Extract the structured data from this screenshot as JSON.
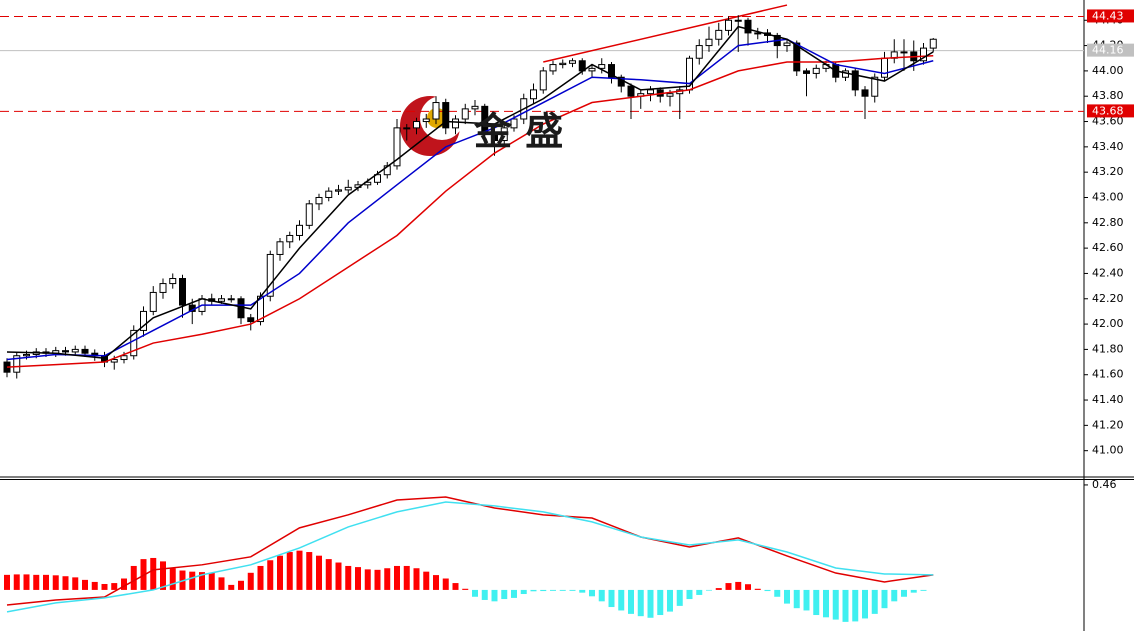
{
  "chart_data": [
    {
      "type": "candlestick",
      "watermark": "金 盛",
      "up_color": "#ffffff",
      "down_color": "#000000",
      "outline_color": "#000000",
      "open": [
        41.7,
        41.62,
        41.75,
        41.76,
        41.78,
        41.77,
        41.79,
        41.78,
        41.8,
        41.77,
        41.75,
        41.7,
        41.72,
        41.75,
        41.95,
        42.1,
        42.25,
        42.32,
        42.36,
        42.15,
        42.1,
        42.2,
        42.18,
        42.2,
        42.2,
        42.05,
        42.02,
        42.22,
        42.55,
        42.65,
        42.7,
        42.78,
        42.95,
        43.0,
        43.05,
        43.06,
        43.08,
        43.1,
        43.12,
        43.18,
        43.25,
        43.55,
        43.55,
        43.6,
        43.62,
        43.75,
        43.55,
        43.62,
        43.7,
        43.72,
        43.5,
        43.45,
        43.55,
        43.62,
        43.78,
        43.85,
        44.0,
        44.05,
        44.06,
        44.08,
        44.0,
        44.02,
        44.05,
        43.95,
        43.88,
        43.8,
        43.82,
        43.85,
        43.8,
        43.82,
        43.85,
        44.1,
        44.2,
        44.25,
        44.32,
        44.4,
        44.4,
        44.3,
        44.3,
        44.28,
        44.2,
        44.22,
        44.0,
        43.98,
        44.02,
        44.05,
        43.95,
        44.0,
        43.85,
        43.8,
        43.95,
        44.1,
        44.15,
        44.15,
        44.08,
        44.18
      ],
      "high": [
        41.73,
        41.78,
        41.79,
        41.81,
        41.81,
        41.82,
        41.82,
        41.83,
        41.83,
        41.8,
        41.78,
        41.75,
        41.78,
        41.99,
        42.14,
        42.3,
        42.36,
        42.4,
        42.39,
        42.2,
        42.23,
        42.24,
        42.23,
        42.23,
        42.22,
        42.08,
        42.25,
        42.58,
        42.68,
        42.73,
        42.82,
        42.98,
        43.03,
        43.08,
        43.1,
        43.14,
        43.13,
        43.15,
        43.21,
        43.28,
        43.62,
        43.58,
        43.63,
        43.66,
        43.8,
        43.78,
        43.65,
        43.74,
        43.77,
        43.74,
        43.53,
        43.58,
        43.65,
        43.82,
        43.9,
        44.03,
        44.08,
        44.09,
        44.1,
        44.1,
        44.05,
        44.1,
        44.07,
        43.97,
        43.9,
        43.85,
        43.88,
        43.87,
        43.85,
        43.88,
        44.12,
        44.25,
        44.35,
        44.38,
        44.43,
        44.44,
        44.42,
        44.34,
        44.33,
        44.3,
        44.25,
        44.24,
        44.02,
        44.05,
        44.08,
        44.07,
        44.02,
        44.02,
        43.88,
        43.98,
        44.15,
        44.25,
        44.25,
        44.24,
        44.22,
        44.26
      ],
      "low": [
        41.58,
        41.57,
        41.72,
        41.73,
        41.74,
        41.74,
        41.75,
        41.75,
        41.74,
        41.71,
        41.66,
        41.64,
        41.69,
        41.72,
        41.9,
        42.07,
        42.2,
        42.28,
        42.05,
        42.0,
        42.07,
        42.15,
        42.16,
        42.17,
        42.0,
        41.95,
        41.99,
        42.18,
        42.5,
        42.6,
        42.66,
        42.75,
        42.9,
        42.97,
        43.02,
        43.03,
        43.05,
        43.07,
        43.1,
        43.15,
        43.22,
        43.45,
        43.5,
        43.55,
        43.58,
        43.5,
        43.5,
        43.58,
        43.65,
        43.45,
        43.33,
        43.4,
        43.52,
        43.58,
        43.74,
        43.82,
        43.97,
        44.02,
        44.03,
        43.97,
        43.95,
        43.98,
        43.9,
        43.83,
        43.62,
        43.7,
        43.76,
        43.75,
        43.72,
        43.62,
        43.82,
        44.05,
        44.15,
        44.2,
        44.28,
        44.15,
        44.2,
        44.25,
        44.22,
        44.1,
        44.15,
        43.96,
        43.8,
        43.94,
        43.99,
        43.91,
        43.92,
        43.8,
        43.62,
        43.75,
        43.92,
        44.06,
        44.0,
        44.0,
        44.05,
        44.15
      ],
      "close": [
        41.62,
        41.75,
        41.76,
        41.78,
        41.77,
        41.79,
        41.78,
        41.8,
        41.77,
        41.75,
        41.7,
        41.72,
        41.75,
        41.95,
        42.1,
        42.25,
        42.32,
        42.36,
        42.15,
        42.1,
        42.2,
        42.18,
        42.2,
        42.2,
        42.05,
        42.02,
        42.22,
        42.55,
        42.65,
        42.7,
        42.78,
        42.95,
        43.0,
        43.05,
        43.06,
        43.08,
        43.1,
        43.12,
        43.18,
        43.25,
        43.55,
        43.55,
        43.6,
        43.62,
        43.75,
        43.55,
        43.62,
        43.7,
        43.72,
        43.5,
        43.45,
        43.55,
        43.62,
        43.78,
        43.85,
        44.0,
        44.05,
        44.06,
        44.08,
        44.0,
        44.02,
        44.05,
        43.95,
        43.88,
        43.8,
        43.82,
        43.85,
        43.8,
        43.82,
        43.85,
        44.1,
        44.2,
        44.25,
        44.32,
        44.4,
        44.4,
        44.3,
        44.3,
        44.28,
        44.2,
        44.22,
        44.0,
        43.98,
        44.02,
        44.05,
        43.95,
        44.0,
        43.85,
        43.8,
        43.95,
        44.1,
        44.15,
        44.15,
        44.08,
        44.18,
        44.25
      ],
      "lines": [
        {
          "color": "#e00000",
          "x": [
            0,
            5,
            10,
            15,
            20,
            25,
            30,
            35,
            40,
            45,
            50,
            55,
            60,
            65,
            70,
            75,
            80,
            85,
            90,
            95
          ],
          "values": [
            41.66,
            41.68,
            41.7,
            41.85,
            41.92,
            42.0,
            42.2,
            42.45,
            42.7,
            43.05,
            43.35,
            43.58,
            43.75,
            43.8,
            43.85,
            44.0,
            44.07,
            44.07,
            44.1,
            44.12
          ]
        },
        {
          "color": "#0000cc",
          "x": [
            0,
            5,
            10,
            15,
            20,
            25,
            30,
            35,
            40,
            45,
            50,
            55,
            60,
            65,
            70,
            75,
            80,
            85,
            90,
            95
          ],
          "values": [
            41.72,
            41.76,
            41.75,
            41.95,
            42.15,
            42.15,
            42.4,
            42.8,
            43.1,
            43.4,
            43.55,
            43.75,
            43.95,
            43.93,
            43.9,
            44.2,
            44.25,
            44.05,
            43.98,
            44.08
          ]
        },
        {
          "color": "#000000",
          "x": [
            0,
            5,
            10,
            15,
            20,
            25,
            30,
            35,
            40,
            45,
            50,
            55,
            60,
            65,
            70,
            75,
            80,
            85,
            90,
            95
          ],
          "values": [
            41.78,
            41.77,
            41.73,
            42.05,
            42.2,
            42.12,
            42.6,
            43.02,
            43.3,
            43.6,
            43.58,
            43.78,
            44.05,
            43.85,
            43.88,
            44.35,
            44.25,
            44.0,
            43.92,
            44.15
          ]
        }
      ],
      "trendline": {
        "color": "#e00000",
        "x": [
          55,
          80
        ],
        "values": [
          44.07,
          44.52
        ]
      },
      "hlines": [
        {
          "value": 44.43,
          "color": "#e00000",
          "style": "dashed"
        },
        {
          "value": 44.16,
          "color": "#c0c0c0",
          "style": "solid"
        },
        {
          "value": 43.68,
          "color": "#e00000",
          "style": "dashed"
        }
      ],
      "ylim": [
        40.8,
        44.56
      ],
      "yticks": [
        {
          "value": 41,
          "label": "41.00"
        },
        {
          "value": 41.2,
          "label": "41.20"
        },
        {
          "value": 41.4,
          "label": "41.40"
        },
        {
          "value": 41.6,
          "label": "41.60"
        },
        {
          "value": 41.8,
          "label": "41.80"
        },
        {
          "value": 42,
          "label": "42.00"
        },
        {
          "value": 42.2,
          "label": "42.20"
        },
        {
          "value": 42.4,
          "label": "42.40"
        },
        {
          "value": 42.6,
          "label": "42.60"
        },
        {
          "value": 42.8,
          "label": "42.80"
        },
        {
          "value": 43,
          "label": "43.00"
        },
        {
          "value": 43.2,
          "label": "43.20"
        },
        {
          "value": 43.4,
          "label": "43.40"
        },
        {
          "value": 43.6,
          "label": "43.60"
        },
        {
          "value": 43.8,
          "label": "43.80"
        },
        {
          "value": 44,
          "label": "44.00"
        },
        {
          "value": 44.2,
          "label": "44.20"
        },
        {
          "value": 44.4,
          "label": "44.40"
        }
      ]
    },
    {
      "type": "macd",
      "histogram": {
        "color": "#ff0000",
        "negative_color": "#40f0f0",
        "values": [
          0.066,
          0.068,
          0.068,
          0.066,
          0.066,
          0.064,
          0.06,
          0.055,
          0.044,
          0.035,
          0.026,
          0.03,
          0.05,
          0.105,
          0.135,
          0.14,
          0.125,
          0.095,
          0.085,
          0.08,
          0.078,
          0.075,
          0.055,
          0.022,
          0.04,
          0.075,
          0.105,
          0.13,
          0.15,
          0.166,
          0.172,
          0.166,
          0.15,
          0.135,
          0.12,
          0.105,
          0.1,
          0.09,
          0.088,
          0.095,
          0.105,
          0.105,
          0.095,
          0.08,
          0.065,
          0.05,
          0.03,
          0.005,
          -0.03,
          -0.044,
          -0.05,
          -0.04,
          -0.035,
          -0.018,
          -0.006,
          -0.005,
          -0.004,
          -0.004,
          -0.004,
          -0.012,
          -0.028,
          -0.05,
          -0.075,
          -0.09,
          -0.105,
          -0.115,
          -0.122,
          -0.11,
          -0.095,
          -0.07,
          -0.04,
          -0.022,
          -0.003,
          0.008,
          0.03,
          0.035,
          0.025,
          0.005,
          -0.005,
          -0.03,
          -0.06,
          -0.08,
          -0.09,
          -0.11,
          -0.12,
          -0.13,
          -0.14,
          -0.138,
          -0.125,
          -0.105,
          -0.08,
          -0.05,
          -0.03,
          -0.012,
          -0.004,
          0.0
        ]
      },
      "lines": [
        {
          "color": "#e00000",
          "x": [
            0,
            5,
            10,
            15,
            20,
            25,
            30,
            35,
            40,
            45,
            50,
            55,
            60,
            65,
            70,
            75,
            80,
            85,
            90,
            95
          ],
          "values": [
            -0.066,
            -0.044,
            -0.031,
            0.088,
            0.11,
            0.145,
            0.272,
            0.329,
            0.394,
            0.407,
            0.359,
            0.329,
            0.315,
            0.232,
            0.188,
            0.228,
            0.149,
            0.074,
            0.035,
            0.066
          ]
        },
        {
          "color": "#40e0f0",
          "x": [
            0,
            5,
            10,
            15,
            20,
            25,
            30,
            35,
            40,
            45,
            50,
            55,
            60,
            65,
            70,
            75,
            80,
            85,
            90,
            95
          ],
          "values": [
            -0.096,
            -0.057,
            -0.035,
            0.0,
            0.066,
            0.11,
            0.184,
            0.276,
            0.342,
            0.385,
            0.368,
            0.342,
            0.298,
            0.232,
            0.197,
            0.219,
            0.166,
            0.096,
            0.07,
            0.066
          ]
        }
      ],
      "ylim": [
        -0.18,
        0.486
      ],
      "yticks": [
        0.46
      ]
    }
  ]
}
